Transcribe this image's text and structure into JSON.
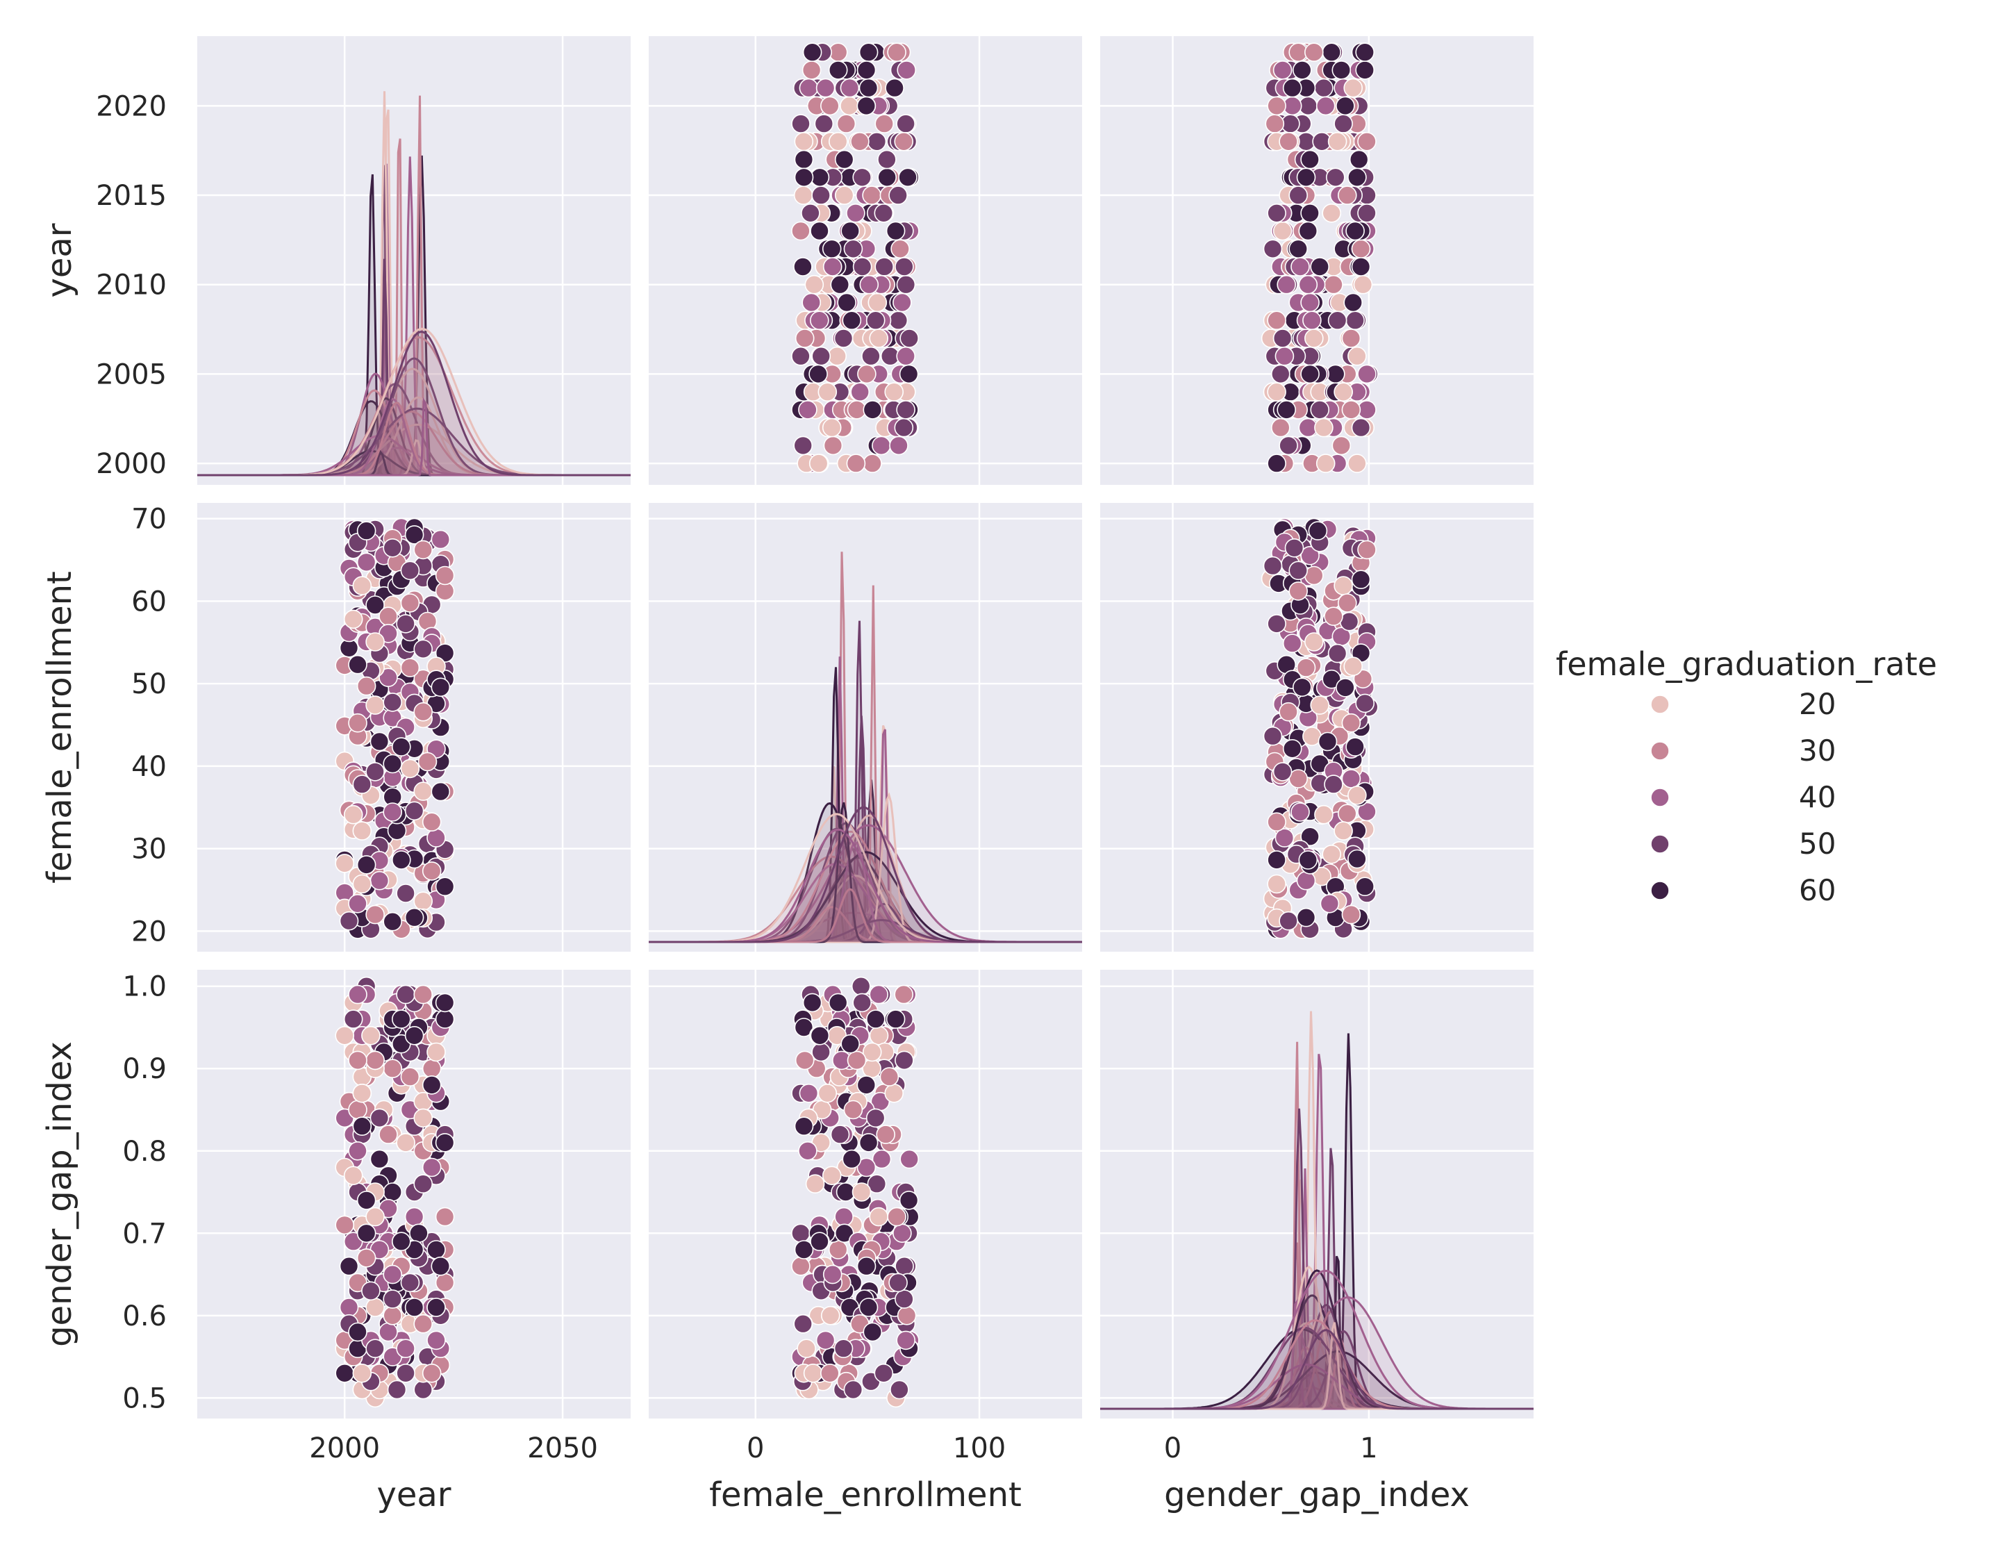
{
  "chart_data": {
    "type": "scatter",
    "subtype": "pairplot",
    "variables": [
      "year",
      "female_enrollment",
      "gender_gap_index"
    ],
    "axis_labels": {
      "year": "year",
      "female_enrollment": "female_enrollment",
      "gender_gap_index": "gender_gap_index"
    },
    "diagonal": "kde",
    "axis_ranges": {
      "year": [
        1966.2,
        2065.6
      ],
      "female_enrollment": [
        -47.7,
        145.9
      ],
      "gender_gap_index": [
        -0.37,
        1.84
      ],
      "year_row": [
        1998.8,
        2023.9
      ],
      "female_enrollment_row": [
        17.5,
        71.9
      ],
      "gender_gap_index_row": [
        0.475,
        1.02
      ]
    },
    "ticks": {
      "year_x": [
        "2000",
        "2050"
      ],
      "female_enrollment_x": [
        "0",
        "100"
      ],
      "gender_gap_index_x": [
        "0",
        "1"
      ],
      "year_y": [
        "2000",
        "2005",
        "2010",
        "2015",
        "2020"
      ],
      "female_enrollment_y": [
        "20",
        "30",
        "40",
        "50",
        "60",
        "70"
      ],
      "gender_gap_index_y": [
        "0.5",
        "0.6",
        "0.7",
        "0.8",
        "0.9",
        "1.0"
      ]
    },
    "tick_values": {
      "year_x": [
        2000,
        2050
      ],
      "female_enrollment_x": [
        0,
        100
      ],
      "gender_gap_index_x": [
        0,
        1
      ],
      "year_y": [
        2000,
        2005,
        2010,
        2015,
        2020
      ],
      "female_enrollment_y": [
        20,
        30,
        40,
        50,
        60,
        70
      ],
      "gender_gap_index_y": [
        0.5,
        0.6,
        0.7,
        0.8,
        0.9,
        1.0
      ]
    },
    "data_extent": {
      "year": [
        2000,
        2023
      ],
      "female_enrollment": [
        20,
        69.5
      ],
      "gender_gap_index": [
        0.5,
        1.0
      ]
    },
    "hue": {
      "title": "female_graduation_rate",
      "levels": [
        {
          "label": "20",
          "value": 20,
          "color": "#e8c0bb"
        },
        {
          "label": "30",
          "value": 30,
          "color": "#c78595"
        },
        {
          "label": "40",
          "value": 40,
          "color": "#a2608f"
        },
        {
          "label": "50",
          "value": 50,
          "color": "#70406c"
        },
        {
          "label": "60",
          "value": 60,
          "color": "#3b1f43"
        }
      ]
    },
    "legend_position": "right",
    "grid": true,
    "background_color": "#eaeaf2",
    "grid_color": "#ffffff"
  }
}
